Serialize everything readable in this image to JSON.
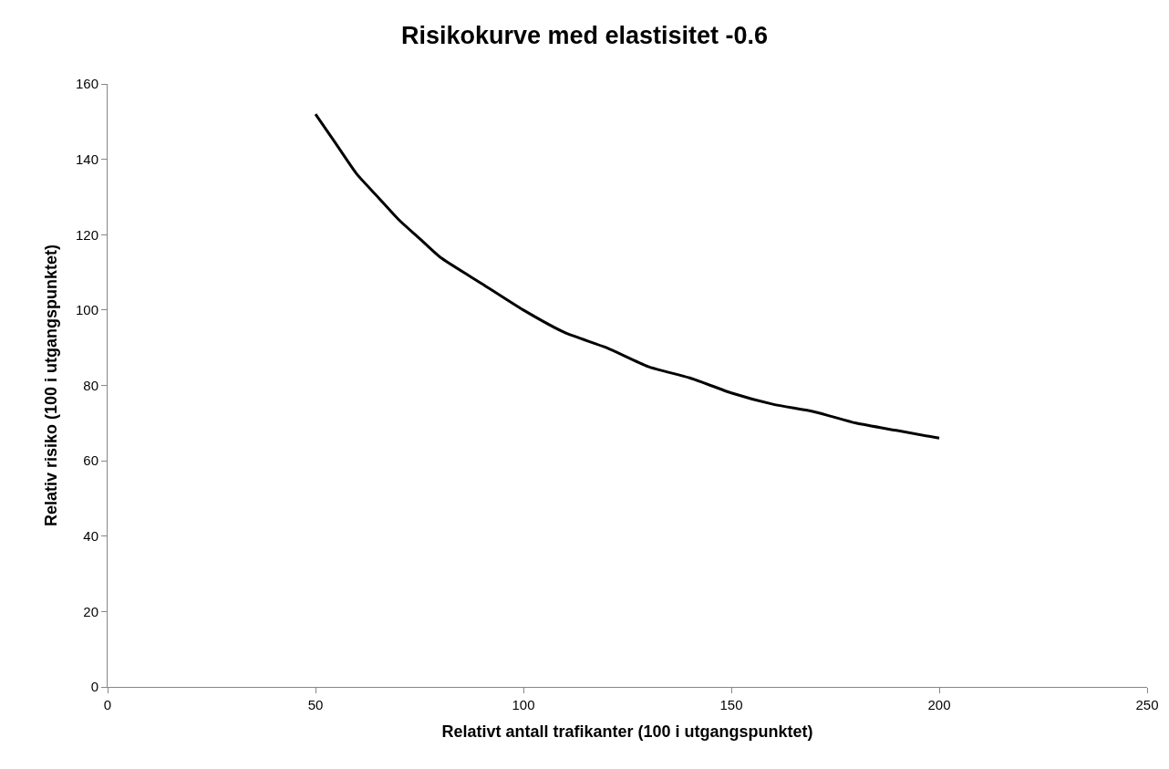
{
  "chart_data": {
    "type": "line",
    "title": "Risikokurve med elastisitet -0.6",
    "xlabel": "Relativt antall trafikanter (100 i utgangspunktet)",
    "ylabel": "Relativ risiko (100 i utgangspunktet)",
    "x": [
      50,
      55,
      60,
      65,
      70,
      75,
      80,
      90,
      100,
      110,
      120,
      130,
      140,
      150,
      160,
      170,
      180,
      190,
      200
    ],
    "series": [
      {
        "color": "#000000",
        "values": [
          152,
          144,
          136,
          130,
          124,
          119,
          114,
          107,
          100,
          94,
          90,
          85,
          82,
          78,
          75,
          73,
          70,
          68,
          66
        ]
      }
    ],
    "xlim": [
      0,
      250
    ],
    "xticks": [
      0,
      50,
      100,
      150,
      200,
      250
    ],
    "ylim": [
      0,
      160
    ],
    "yticks": [
      0,
      20,
      40,
      60,
      80,
      100,
      120,
      140,
      160
    ],
    "marker": "none",
    "line_style": "solid"
  }
}
